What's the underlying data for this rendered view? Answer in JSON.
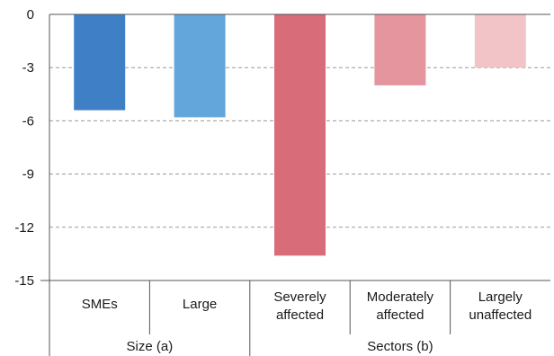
{
  "chart_data": {
    "type": "bar",
    "title": "",
    "xlabel": "",
    "ylabel": "",
    "ylim": [
      -15,
      0
    ],
    "yticks": [
      "0",
      "-3",
      "-6",
      "-9",
      "-12",
      "-15"
    ],
    "grid": true,
    "categories": [
      [
        "SMEs"
      ],
      [
        "Large"
      ],
      [
        "Severely",
        "affected"
      ],
      [
        "Moderately",
        "affected"
      ],
      [
        "Largely",
        "unaffected"
      ]
    ],
    "values": [
      -5.4,
      -5.8,
      -13.6,
      -4.0,
      -3.0
    ],
    "colors": [
      "#3f7fc6",
      "#62a6dc",
      "#d86c79",
      "#e4959e",
      "#f2c4c8"
    ],
    "groups": [
      {
        "label": "Size (a)",
        "span": [
          0,
          1
        ]
      },
      {
        "label": "Sectors (b)",
        "span": [
          2,
          4
        ]
      }
    ]
  }
}
